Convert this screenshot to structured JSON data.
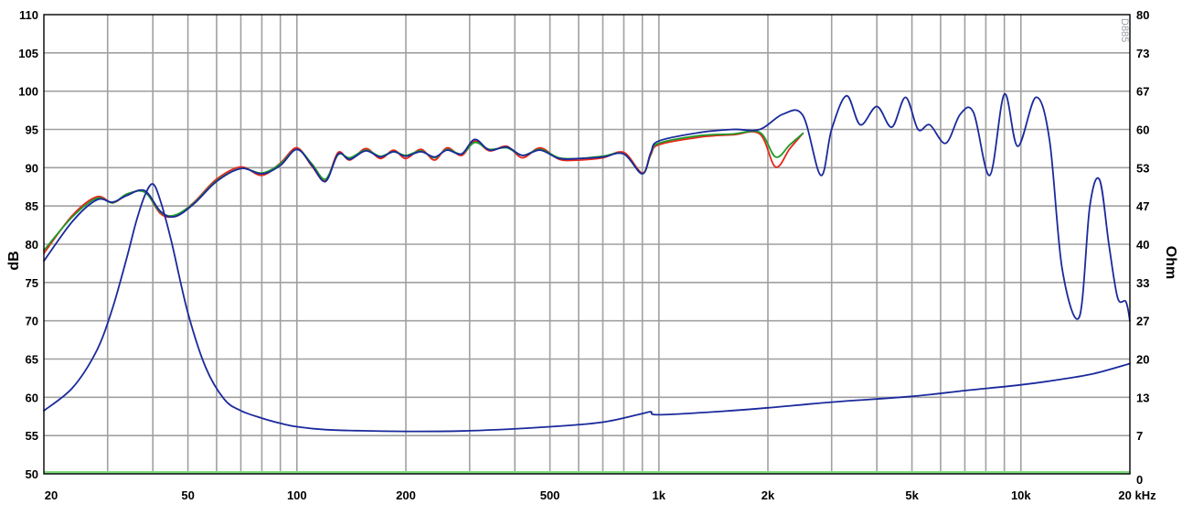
{
  "chart_data": {
    "type": "line",
    "title": "",
    "xlabel": "",
    "ylabel": "dB",
    "y2label": "Ohm",
    "watermark": "D885",
    "x_scale": "log",
    "xlim": [
      20,
      20000
    ],
    "ylim": [
      50,
      110
    ],
    "y2lim": [
      0,
      80
    ],
    "grid": true,
    "legend": "none",
    "x_tick_values": [
      20,
      50,
      100,
      200,
      500,
      1000,
      2000,
      5000,
      10000,
      20000
    ],
    "x_tick_labels": [
      "20",
      "50",
      "100",
      "200",
      "500",
      "1k",
      "2k",
      "5k",
      "10k",
      "20 kHz"
    ],
    "y_ticks": [
      "110",
      "105",
      "100",
      "95",
      "90",
      "85",
      "80",
      "75",
      "70",
      "65",
      "60",
      "55",
      "50"
    ],
    "y2_ticks": [
      "80",
      "73",
      "67",
      "60",
      "53",
      "47",
      "40",
      "33",
      "27",
      "20",
      "13",
      "7",
      "0"
    ],
    "colors": {
      "grid": "#a0a0a0",
      "axis": "#000000",
      "baseline": "#7fdc7f",
      "spl_red": "#e8261a",
      "spl_green": "#1f9a2a",
      "spl_blue": "#1a2a9c",
      "impedance": "#1a2a9c"
    },
    "series": [
      {
        "role": "spl-red",
        "axis": "left",
        "x": [
          20,
          24,
          28,
          31,
          34,
          38,
          42,
          46,
          52,
          60,
          70,
          80,
          90,
          100,
          110,
          120,
          130,
          140,
          155,
          170,
          185,
          200,
          220,
          240,
          260,
          285,
          310,
          340,
          380,
          420,
          470,
          530,
          600,
          700,
          800,
          900,
          950,
          1000,
          1300,
          1600,
          1900,
          2100,
          2300,
          2500
        ],
        "y": [
          78.8,
          83.8,
          86.2,
          85.4,
          86.5,
          86.9,
          84.0,
          83.7,
          85.5,
          88.5,
          90.1,
          89.0,
          90.6,
          92.6,
          90.2,
          88.3,
          92.0,
          91.0,
          92.5,
          91.2,
          92.3,
          91.2,
          92.4,
          91.0,
          92.6,
          91.6,
          93.5,
          92.2,
          92.8,
          91.3,
          92.6,
          91.1,
          91.0,
          91.3,
          92.0,
          89.3,
          91.7,
          93.0,
          94.0,
          94.3,
          94.4,
          90.1,
          92.5,
          94.5
        ]
      },
      {
        "role": "spl-green",
        "axis": "left",
        "x": [
          20,
          24,
          28,
          31,
          34,
          38,
          42,
          46,
          52,
          60,
          70,
          80,
          90,
          100,
          110,
          120,
          130,
          140,
          155,
          170,
          185,
          200,
          220,
          240,
          260,
          285,
          310,
          340,
          380,
          420,
          470,
          530,
          600,
          700,
          800,
          900,
          950,
          1000,
          1300,
          1600,
          1900,
          2100,
          2300,
          2500
        ],
        "y": [
          79.2,
          83.6,
          86.0,
          85.4,
          86.6,
          86.8,
          84.2,
          83.8,
          85.4,
          88.3,
          89.9,
          89.3,
          90.5,
          92.4,
          90.5,
          88.5,
          91.7,
          91.3,
          92.3,
          91.5,
          92.1,
          91.6,
          92.2,
          91.3,
          92.4,
          91.8,
          93.3,
          92.4,
          92.6,
          91.6,
          92.4,
          91.3,
          91.2,
          91.5,
          91.8,
          89.2,
          91.9,
          93.2,
          94.2,
          94.4,
          94.6,
          91.4,
          93.0,
          94.5
        ]
      },
      {
        "role": "spl-blue",
        "axis": "left",
        "x": [
          20,
          24,
          28,
          31,
          34,
          38,
          42,
          46,
          52,
          60,
          70,
          80,
          90,
          100,
          110,
          120,
          130,
          140,
          155,
          170,
          185,
          200,
          220,
          240,
          260,
          285,
          310,
          340,
          380,
          420,
          470,
          530,
          600,
          700,
          800,
          900,
          950,
          1000,
          1300,
          1600,
          1900,
          2200,
          2500,
          2800,
          3000,
          3300,
          3600,
          4000,
          4400,
          4800,
          5200,
          5600,
          6200,
          6800,
          7400,
          8200,
          9000,
          9800,
          11000,
          12000,
          13000,
          14500,
          15500,
          16500,
          17500,
          18500,
          19500,
          20000
        ],
        "y": [
          77.8,
          83.0,
          85.8,
          85.5,
          86.4,
          87.0,
          84.3,
          83.6,
          85.3,
          88.2,
          89.9,
          89.2,
          90.3,
          92.4,
          90.3,
          88.2,
          91.8,
          91.1,
          92.2,
          91.4,
          92.1,
          91.5,
          92.1,
          91.4,
          92.3,
          91.8,
          93.7,
          92.3,
          92.7,
          91.6,
          92.3,
          91.2,
          91.2,
          91.4,
          91.8,
          89.2,
          92.0,
          93.5,
          94.6,
          95.0,
          95.0,
          97.0,
          96.8,
          89.0,
          95.0,
          99.4,
          95.6,
          98.0,
          95.3,
          99.2,
          95.0,
          95.6,
          93.2,
          97.0,
          97.2,
          89.0,
          99.6,
          92.8,
          99.2,
          93.6,
          76.8,
          70.5,
          85.0,
          88.4,
          80.0,
          73.0,
          72.5,
          70.0
        ]
      },
      {
        "role": "impedance",
        "axis": "right",
        "x": [
          20,
          24,
          28,
          31,
          34,
          36,
          38,
          40,
          42,
          45,
          50,
          56,
          63,
          70,
          80,
          90,
          100,
          120,
          150,
          200,
          300,
          500,
          700,
          900,
          950,
          1000,
          1500,
          2000,
          3000,
          5000,
          7000,
          10000,
          13000,
          16000,
          20000
        ],
        "y": [
          11.0,
          15.0,
          21.5,
          29.0,
          38.0,
          44.0,
          48.5,
          50.5,
          47.5,
          40.5,
          28.0,
          18.5,
          13.0,
          11.0,
          9.7,
          8.8,
          8.2,
          7.7,
          7.5,
          7.4,
          7.5,
          8.2,
          9.0,
          10.5,
          10.8,
          10.3,
          10.9,
          11.5,
          12.5,
          13.5,
          14.5,
          15.5,
          16.5,
          17.5,
          19.2
        ]
      }
    ]
  }
}
